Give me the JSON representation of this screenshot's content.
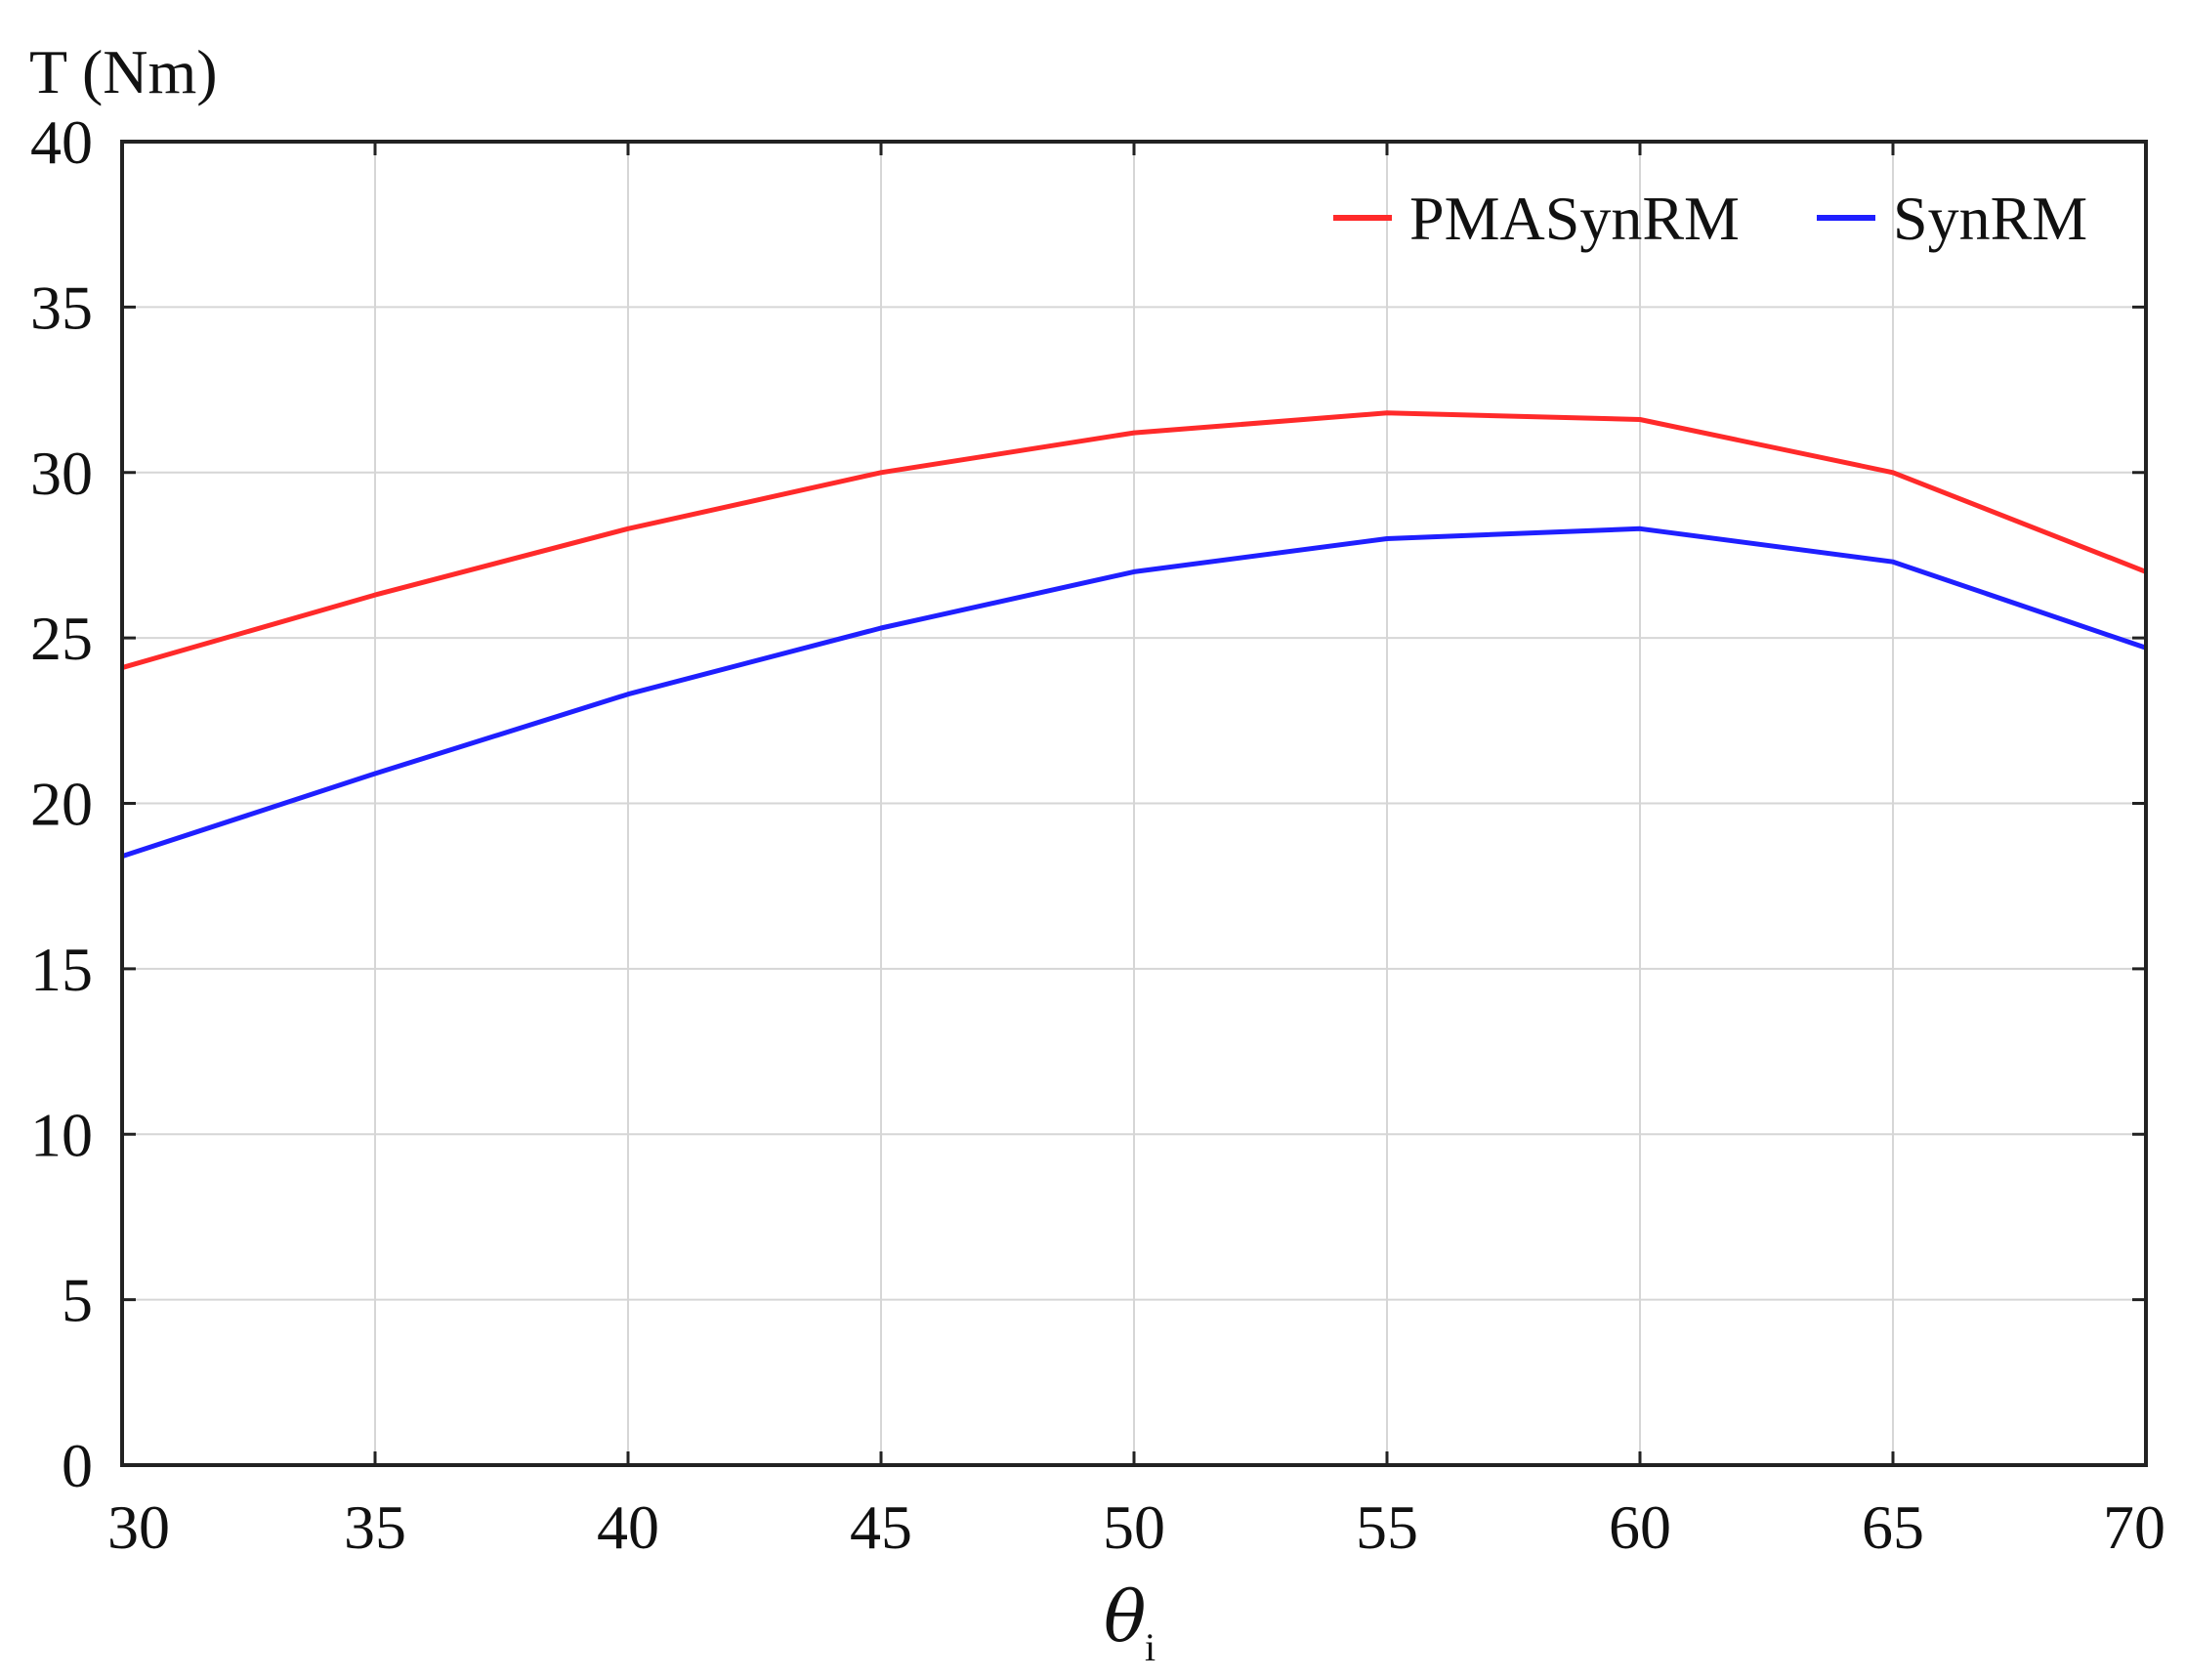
{
  "chart_data": {
    "type": "line",
    "ylabel": "T (Nm)",
    "xlabel": {
      "symbol": "θ",
      "subscript": "i"
    },
    "xlim": [
      30,
      70
    ],
    "ylim": [
      0,
      40
    ],
    "x": [
      30,
      35,
      40,
      45,
      50,
      55,
      60,
      65,
      70
    ],
    "xticks": [
      "30",
      "35",
      "40",
      "45",
      "50",
      "55",
      "60",
      "65",
      "70"
    ],
    "yticks": [
      "0",
      "5",
      "10",
      "15",
      "20",
      "25",
      "30",
      "35",
      "40"
    ],
    "grid": true,
    "legend_position": "top-right",
    "series": [
      {
        "name": "PMASynRM",
        "color": "#ff2a2a",
        "values": [
          24.1,
          26.3,
          28.3,
          30.0,
          31.2,
          31.8,
          31.6,
          30.0,
          27.0
        ]
      },
      {
        "name": "SynRM",
        "color": "#1f1fff",
        "values": [
          18.4,
          20.9,
          23.3,
          25.3,
          27.0,
          28.0,
          28.3,
          27.3,
          24.7
        ]
      }
    ]
  }
}
